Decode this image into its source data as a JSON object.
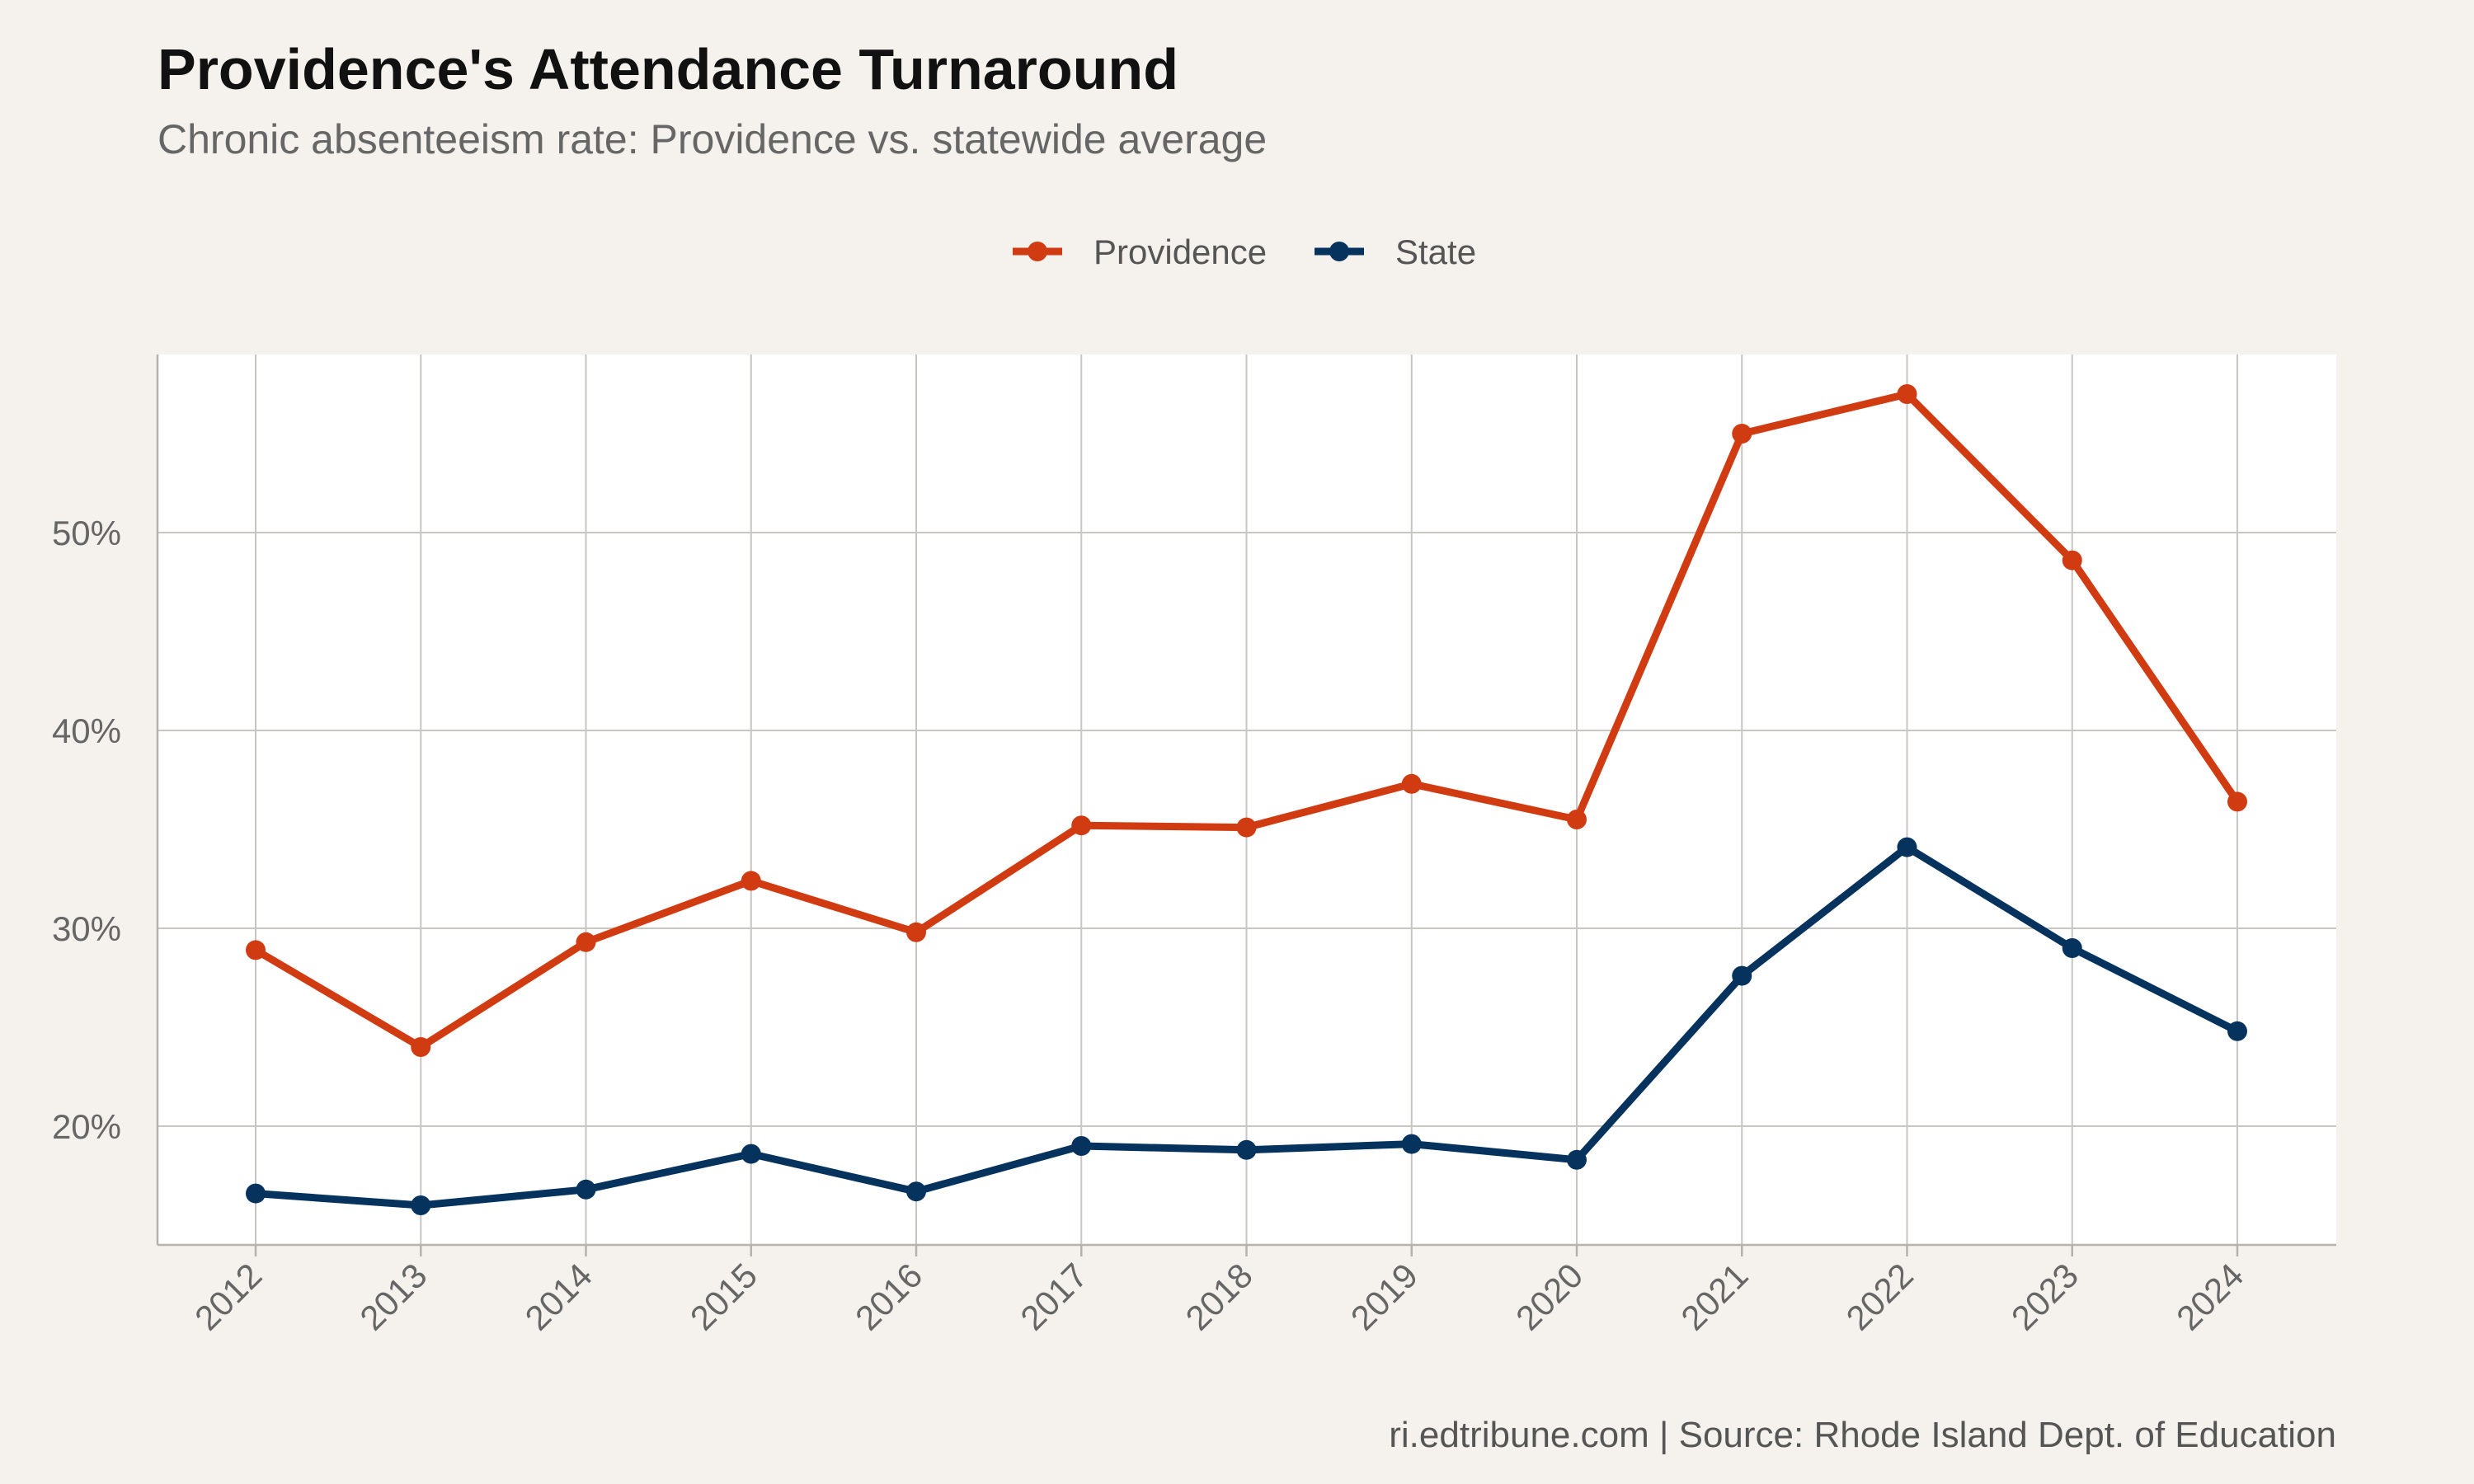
{
  "title": "Providence's Attendance Turnaround",
  "subtitle": "Chronic absenteeism rate: Providence vs. statewide average",
  "caption": "ri.edtribune.com | Source: Rhode Island Dept. of Education",
  "chart_data": {
    "type": "line",
    "x": [
      "2012",
      "2013",
      "2014",
      "2015",
      "2016",
      "2017",
      "2018",
      "2019",
      "2020",
      "2021",
      "2022",
      "2023",
      "2024"
    ],
    "series": [
      {
        "name": "Providence",
        "color": "#d13b12",
        "values": [
          28.9,
          24.0,
          29.3,
          32.4,
          29.8,
          35.2,
          35.1,
          37.3,
          35.5,
          55.0,
          57.0,
          48.6,
          36.4
        ]
      },
      {
        "name": "State",
        "color": "#05335e",
        "values": [
          16.6,
          16.0,
          16.8,
          18.6,
          16.7,
          19.0,
          18.8,
          19.1,
          18.3,
          27.6,
          34.1,
          29.0,
          24.8
        ]
      }
    ],
    "xlabel": "",
    "ylabel": "",
    "ylim": [
      14,
      59
    ],
    "yticks": [
      20,
      30,
      40,
      50
    ],
    "ytick_labels": [
      "20%",
      "30%",
      "40%",
      "50%"
    ],
    "grid": true,
    "legend": "top-center"
  }
}
